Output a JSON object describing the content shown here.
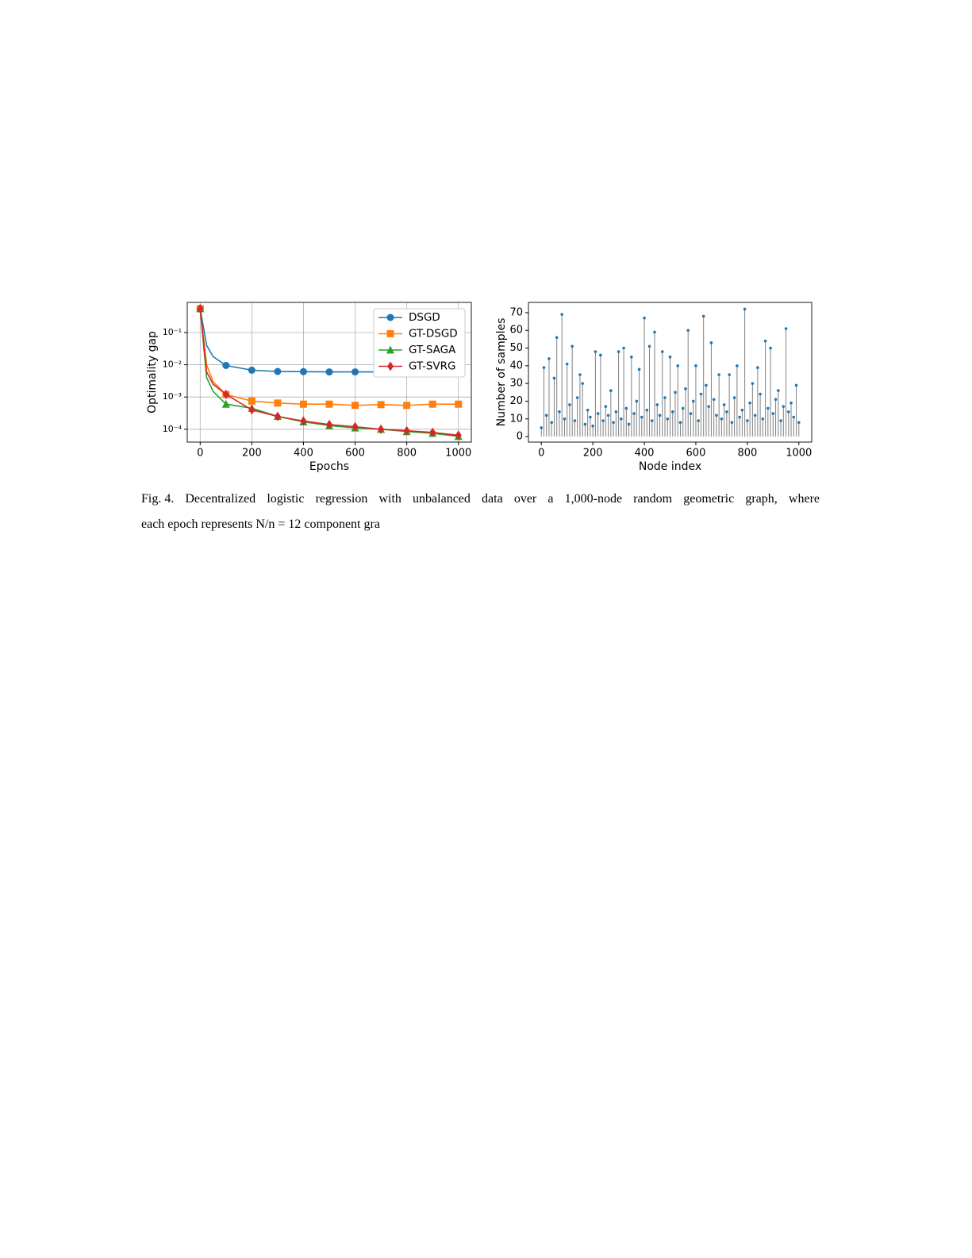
{
  "chart_data": [
    {
      "type": "line",
      "xlabel": "Epochs",
      "ylabel": "Optimality gap",
      "log_y": true,
      "grid": true,
      "legend": "upper right",
      "x": [
        0,
        25,
        50,
        100,
        200,
        300,
        400,
        500,
        600,
        700,
        800,
        900,
        1000
      ],
      "series": [
        {
          "name": "DSGD",
          "color": "#1f77b4",
          "marker": "circle",
          "values": [
            0.55,
            0.04,
            0.018,
            0.0095,
            0.0068,
            0.0062,
            0.0061,
            0.006,
            0.006,
            0.006,
            0.006,
            0.006,
            0.006
          ]
        },
        {
          "name": "GT-DSGD",
          "color": "#ff7f0e",
          "marker": "square",
          "values": [
            0.55,
            0.01,
            0.003,
            0.0012,
            0.00075,
            0.00065,
            0.0006,
            0.0006,
            0.00055,
            0.00058,
            0.00055,
            0.0006,
            0.0006
          ]
        },
        {
          "name": "GT-SAGA",
          "color": "#2ca02c",
          "marker": "triangle",
          "values": [
            0.55,
            0.004,
            0.0015,
            0.0006,
            0.00045,
            0.00025,
            0.00017,
            0.00013,
            0.00011,
            0.0001,
            8.5e-05,
            7.5e-05,
            6e-05
          ]
        },
        {
          "name": "GT-SVRG",
          "color": "#d62728",
          "marker": "diamond",
          "values": [
            0.55,
            0.006,
            0.0025,
            0.0012,
            0.0004,
            0.00025,
            0.00018,
            0.00014,
            0.00012,
            0.0001,
            9e-05,
            8e-05,
            6.5e-05
          ]
        }
      ],
      "xlim": [
        -50,
        1050
      ],
      "xticks": [
        0,
        200,
        400,
        600,
        800,
        1000
      ],
      "ylim": [
        4e-05,
        0.86
      ],
      "yticks": [
        {
          "value": 0.0001,
          "label": "10⁻⁴"
        },
        {
          "value": 0.001,
          "label": "10⁻³"
        },
        {
          "value": 0.01,
          "label": "10⁻²"
        },
        {
          "value": 0.1,
          "label": "10⁻¹"
        }
      ]
    },
    {
      "type": "stem",
      "xlabel": "Node index",
      "ylabel": "Number of samples",
      "grid": false,
      "color": "#1f77b4",
      "stem_color": "#808080",
      "x": [
        0,
        10,
        20,
        30,
        40,
        50,
        60,
        70,
        80,
        90,
        100,
        110,
        120,
        130,
        140,
        150,
        160,
        170,
        180,
        190,
        200,
        210,
        220,
        230,
        240,
        250,
        260,
        270,
        280,
        290,
        300,
        310,
        320,
        330,
        340,
        350,
        360,
        370,
        380,
        390,
        400,
        410,
        420,
        430,
        440,
        450,
        460,
        470,
        480,
        490,
        500,
        510,
        520,
        530,
        540,
        550,
        560,
        570,
        580,
        590,
        600,
        610,
        620,
        630,
        640,
        650,
        660,
        670,
        680,
        690,
        700,
        710,
        720,
        730,
        740,
        750,
        760,
        770,
        780,
        790,
        800,
        810,
        820,
        830,
        840,
        850,
        860,
        870,
        880,
        890,
        900,
        910,
        920,
        930,
        940,
        950,
        960,
        970,
        980,
        990,
        1000
      ],
      "values": [
        5,
        39,
        12,
        44,
        8,
        33,
        56,
        14,
        69,
        10,
        41,
        18,
        51,
        9,
        22,
        35,
        30,
        7,
        15,
        11,
        6,
        48,
        13,
        46,
        9,
        17,
        12,
        26,
        8,
        14,
        48,
        10,
        50,
        16,
        7,
        45,
        13,
        20,
        38,
        11,
        67,
        15,
        51,
        9,
        59,
        18,
        12,
        48,
        22,
        10,
        45,
        14,
        25,
        40,
        8,
        16,
        27,
        60,
        13,
        20,
        40,
        9,
        24,
        68,
        29,
        17,
        53,
        21,
        12,
        35,
        10,
        18,
        14,
        35,
        8,
        22,
        40,
        11,
        15,
        72,
        9,
        19,
        30,
        12,
        39,
        24,
        10,
        54,
        16,
        50,
        13,
        21,
        26,
        9,
        17,
        61,
        14,
        19,
        11,
        29,
        8
      ],
      "xlim": [
        -50,
        1050
      ],
      "xticks": [
        0,
        200,
        400,
        600,
        800,
        1000
      ],
      "ylim": [
        -3.1,
        75.8
      ],
      "yticks": [
        0,
        10,
        20,
        30,
        40,
        50,
        60,
        70
      ]
    }
  ],
  "caption": {
    "label": "Fig. 4.",
    "line1": "Decentralized logistic regression with unbalanced data over a 1,000-node random geometric graph, where",
    "line2": "each epoch represents N/n = 12 component gra"
  }
}
